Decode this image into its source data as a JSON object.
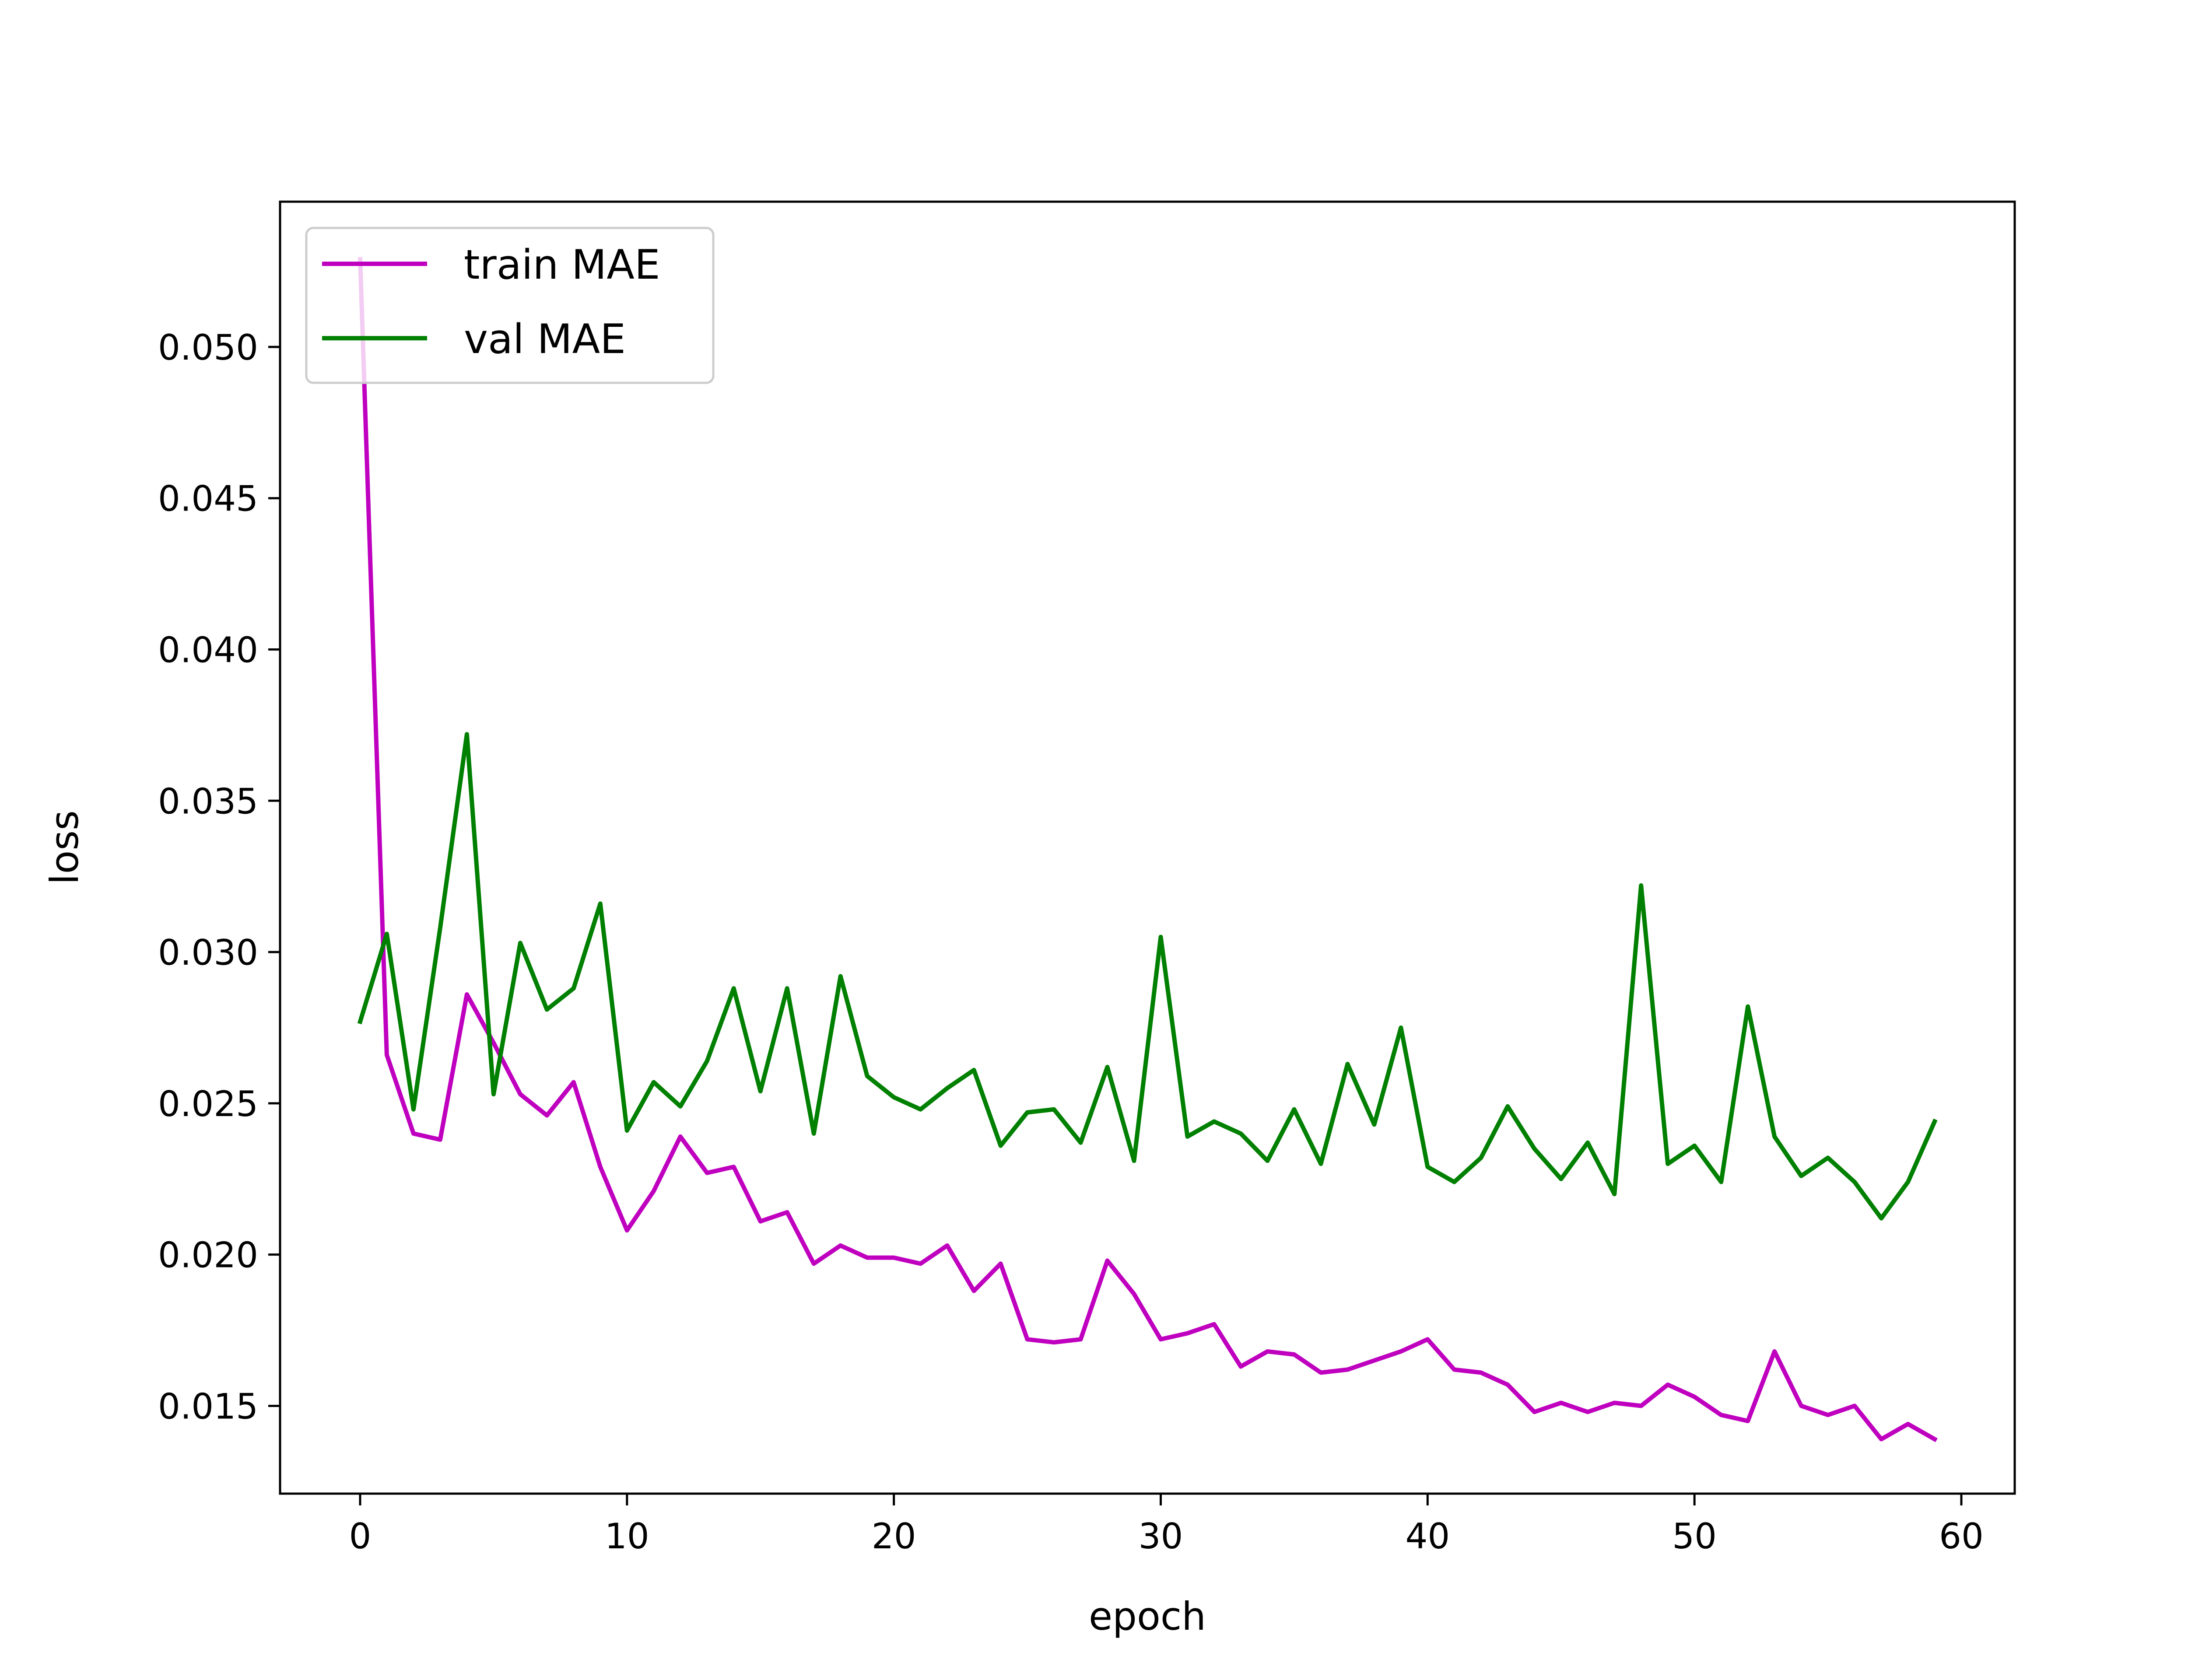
{
  "chart_data": {
    "type": "line",
    "title": "",
    "xlabel": "epoch",
    "ylabel": "loss",
    "xlim": [
      -3,
      62
    ],
    "ylim": [
      0.0121,
      0.0548
    ],
    "xticks": [
      0,
      10,
      20,
      30,
      40,
      50,
      60
    ],
    "yticks": [
      0.015,
      0.02,
      0.025,
      0.03,
      0.035,
      0.04,
      0.045,
      0.05
    ],
    "ytick_labels": [
      "0.015",
      "0.020",
      "0.025",
      "0.030",
      "0.035",
      "0.040",
      "0.045",
      "0.050"
    ],
    "grid": false,
    "legend": "upper-left",
    "x": [
      0,
      1,
      2,
      3,
      4,
      5,
      6,
      7,
      8,
      9,
      10,
      11,
      12,
      13,
      14,
      15,
      16,
      17,
      18,
      19,
      20,
      21,
      22,
      23,
      24,
      25,
      26,
      27,
      28,
      29,
      30,
      31,
      32,
      33,
      34,
      35,
      36,
      37,
      38,
      39,
      40,
      41,
      42,
      43,
      44,
      45,
      46,
      47,
      48,
      49,
      50,
      51,
      52,
      53,
      54,
      55,
      56,
      57,
      58,
      59
    ],
    "series": [
      {
        "name": "train MAE",
        "color": "#bf00bf",
        "values": [
          0.0529,
          0.0266,
          0.024,
          0.0238,
          0.0286,
          0.027,
          0.0253,
          0.0246,
          0.0257,
          0.0229,
          0.0208,
          0.0221,
          0.0239,
          0.0227,
          0.0229,
          0.0211,
          0.0214,
          0.0197,
          0.0203,
          0.0199,
          0.0199,
          0.0197,
          0.0203,
          0.0188,
          0.0197,
          0.0172,
          0.0171,
          0.0172,
          0.0198,
          0.0187,
          0.0172,
          0.0174,
          0.0177,
          0.0163,
          0.0168,
          0.0167,
          0.0161,
          0.0162,
          0.0165,
          0.0168,
          0.0172,
          0.0162,
          0.0161,
          0.0157,
          0.0148,
          0.0151,
          0.0148,
          0.0151,
          0.015,
          0.0157,
          0.0153,
          0.0147,
          0.0145,
          0.0168,
          0.015,
          0.0147,
          0.015,
          0.0139,
          0.0144,
          0.0139
        ]
      },
      {
        "name": "val MAE",
        "color": "#008000",
        "values": [
          0.0277,
          0.0306,
          0.0248,
          0.0308,
          0.0372,
          0.0253,
          0.0303,
          0.0281,
          0.0288,
          0.0316,
          0.0241,
          0.0257,
          0.0249,
          0.0264,
          0.0288,
          0.0254,
          0.0288,
          0.024,
          0.0292,
          0.0259,
          0.0252,
          0.0248,
          0.0255,
          0.0261,
          0.0236,
          0.0247,
          0.0248,
          0.0237,
          0.0262,
          0.0231,
          0.0305,
          0.0239,
          0.0244,
          0.024,
          0.0231,
          0.0248,
          0.023,
          0.0263,
          0.0243,
          0.0275,
          0.0229,
          0.0224,
          0.0232,
          0.0249,
          0.0235,
          0.0225,
          0.0237,
          0.022,
          0.0322,
          0.023,
          0.0236,
          0.0224,
          0.0282,
          0.0239,
          0.0226,
          0.0232,
          0.0224,
          0.0212,
          0.0224,
          0.0244
        ]
      }
    ]
  }
}
